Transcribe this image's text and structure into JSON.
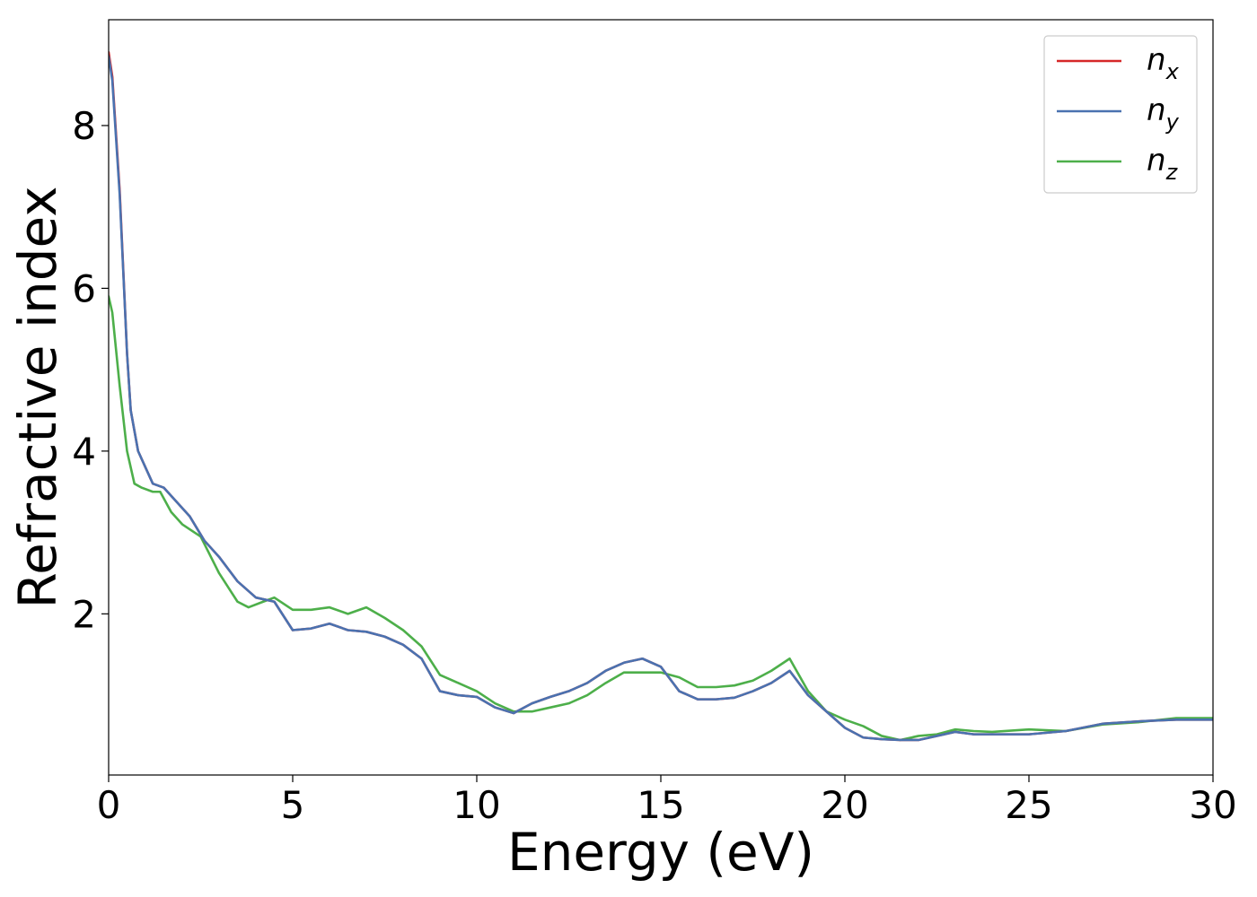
{
  "chart_data": {
    "type": "line",
    "title": "",
    "xlabel": "Energy (eV)",
    "ylabel": "Refractive index",
    "xlim": [
      0,
      30
    ],
    "ylim": [
      0.02,
      9.3
    ],
    "xticks": [
      0,
      5,
      10,
      15,
      20,
      25,
      30
    ],
    "xtick_labels": [
      "0",
      "5",
      "10",
      "15",
      "20",
      "25",
      "30"
    ],
    "yticks": [
      2,
      4,
      6,
      8
    ],
    "ytick_labels": [
      "2",
      "4",
      "6",
      "8"
    ],
    "grid": false,
    "legend_position": "top-right",
    "series": [
      {
        "name": "n_x",
        "label_main": "n",
        "label_sub": "x",
        "color": "#d62728",
        "x": [
          0,
          0.1,
          0.3,
          0.5,
          0.6,
          0.8,
          1.0,
          1.2,
          1.5,
          1.8,
          2.2,
          2.6,
          3.0,
          3.5,
          4.0,
          4.5,
          5.0,
          5.5,
          6.0,
          6.5,
          7.0,
          7.5,
          8.0,
          8.5,
          9.0,
          9.5,
          10.0,
          10.5,
          11.0,
          11.5,
          12.0,
          12.5,
          13.0,
          13.5,
          14.0,
          14.5,
          15.0,
          15.5,
          16.0,
          16.5,
          17.0,
          17.5,
          18.0,
          18.5,
          19.0,
          19.5,
          20.0,
          20.5,
          21.0,
          21.5,
          22.0,
          22.5,
          23.0,
          23.5,
          24.0,
          25.0,
          26.0,
          27.0,
          28.0,
          29.0,
          30.0
        ],
        "y": [
          8.9,
          8.6,
          7.2,
          5.2,
          4.5,
          4.0,
          3.8,
          3.6,
          3.55,
          3.4,
          3.2,
          2.9,
          2.7,
          2.4,
          2.2,
          2.15,
          1.8,
          1.82,
          1.88,
          1.8,
          1.78,
          1.72,
          1.62,
          1.45,
          1.05,
          1.0,
          0.98,
          0.85,
          0.78,
          0.9,
          0.98,
          1.05,
          1.15,
          1.3,
          1.4,
          1.45,
          1.35,
          1.05,
          0.95,
          0.95,
          0.97,
          1.05,
          1.15,
          1.3,
          1.0,
          0.8,
          0.6,
          0.48,
          0.46,
          0.45,
          0.45,
          0.5,
          0.55,
          0.52,
          0.52,
          0.52,
          0.56,
          0.65,
          0.68,
          0.7,
          0.7
        ]
      },
      {
        "name": "n_y",
        "label_main": "n",
        "label_sub": "y",
        "color": "#4a72b0",
        "x": [
          0,
          0.1,
          0.3,
          0.5,
          0.6,
          0.8,
          1.0,
          1.2,
          1.5,
          1.8,
          2.2,
          2.6,
          3.0,
          3.5,
          4.0,
          4.5,
          5.0,
          5.5,
          6.0,
          6.5,
          7.0,
          7.5,
          8.0,
          8.5,
          9.0,
          9.5,
          10.0,
          10.5,
          11.0,
          11.5,
          12.0,
          12.5,
          13.0,
          13.5,
          14.0,
          14.5,
          15.0,
          15.5,
          16.0,
          16.5,
          17.0,
          17.5,
          18.0,
          18.5,
          19.0,
          19.5,
          20.0,
          20.5,
          21.0,
          21.5,
          22.0,
          22.5,
          23.0,
          23.5,
          24.0,
          25.0,
          26.0,
          27.0,
          28.0,
          29.0,
          30.0
        ],
        "y": [
          8.85,
          8.55,
          7.15,
          5.2,
          4.5,
          4.0,
          3.8,
          3.6,
          3.55,
          3.4,
          3.2,
          2.9,
          2.7,
          2.4,
          2.2,
          2.15,
          1.8,
          1.82,
          1.88,
          1.8,
          1.78,
          1.72,
          1.62,
          1.45,
          1.05,
          1.0,
          0.98,
          0.85,
          0.78,
          0.9,
          0.98,
          1.05,
          1.15,
          1.3,
          1.4,
          1.45,
          1.35,
          1.05,
          0.95,
          0.95,
          0.97,
          1.05,
          1.15,
          1.3,
          1.0,
          0.8,
          0.6,
          0.48,
          0.46,
          0.45,
          0.45,
          0.5,
          0.55,
          0.52,
          0.52,
          0.52,
          0.56,
          0.65,
          0.68,
          0.7,
          0.7
        ]
      },
      {
        "name": "n_z",
        "label_main": "n",
        "label_sub": "z",
        "color": "#4daf4a",
        "x": [
          0,
          0.1,
          0.3,
          0.5,
          0.7,
          0.9,
          1.2,
          1.4,
          1.7,
          2.0,
          2.5,
          3.0,
          3.5,
          3.8,
          4.2,
          4.5,
          5.0,
          5.5,
          6.0,
          6.5,
          7.0,
          7.5,
          8.0,
          8.5,
          9.0,
          9.5,
          10.0,
          10.5,
          11.0,
          11.5,
          12.0,
          12.5,
          13.0,
          13.5,
          14.0,
          14.5,
          15.0,
          15.5,
          16.0,
          16.5,
          17.0,
          17.5,
          18.0,
          18.5,
          19.0,
          19.5,
          20.0,
          20.5,
          21.0,
          21.5,
          22.0,
          22.5,
          23.0,
          23.5,
          24.0,
          25.0,
          26.0,
          27.0,
          28.0,
          29.0,
          30.0
        ],
        "y": [
          5.9,
          5.7,
          4.8,
          4.0,
          3.6,
          3.55,
          3.5,
          3.5,
          3.25,
          3.1,
          2.95,
          2.5,
          2.15,
          2.08,
          2.15,
          2.2,
          2.05,
          2.05,
          2.08,
          2.0,
          2.08,
          1.95,
          1.8,
          1.6,
          1.25,
          1.15,
          1.05,
          0.9,
          0.8,
          0.8,
          0.85,
          0.9,
          1.0,
          1.15,
          1.28,
          1.28,
          1.28,
          1.22,
          1.1,
          1.1,
          1.12,
          1.18,
          1.3,
          1.45,
          1.05,
          0.8,
          0.7,
          0.62,
          0.5,
          0.45,
          0.5,
          0.52,
          0.58,
          0.56,
          0.55,
          0.58,
          0.56,
          0.64,
          0.67,
          0.72,
          0.72
        ]
      }
    ]
  }
}
